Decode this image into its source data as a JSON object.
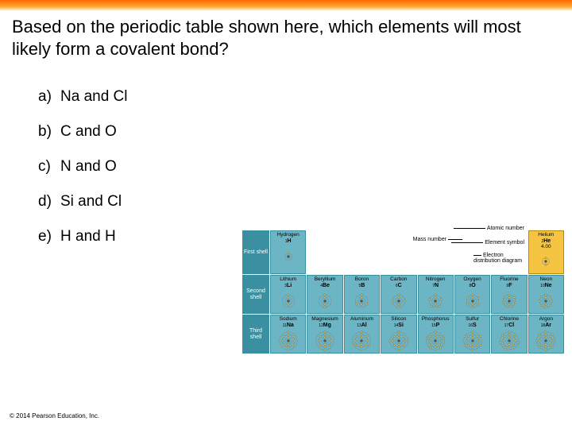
{
  "question": "Based on the periodic table shown here, which elements will most likely form a covalent bond?",
  "options": [
    {
      "letter": "a)",
      "text": "Na and Cl"
    },
    {
      "letter": "b)",
      "text": "C and O"
    },
    {
      "letter": "c)",
      "text": "N and O"
    },
    {
      "letter": "d)",
      "text": "Si and Cl"
    },
    {
      "letter": "e)",
      "text": "H and H"
    }
  ],
  "copyright": "© 2014 Pearson Education, Inc.",
  "rowLabels": [
    "First shell",
    "Second shell",
    "Third shell"
  ],
  "annotations": {
    "atomicNumber": "Atomic number",
    "massNumber": "Mass number",
    "elementSymbol": "Element symbol",
    "electronDist": "Electron distribution diagram"
  },
  "elements": {
    "H": {
      "name": "Hydrogen",
      "num": 1,
      "sym": "H",
      "mass": "",
      "shells": [
        1
      ]
    },
    "He": {
      "name": "Helium",
      "num": 2,
      "sym": "He",
      "mass": "4.00",
      "shells": [
        2
      ],
      "selected": true
    },
    "Li": {
      "name": "Lithium",
      "num": 3,
      "sym": "Li",
      "shells": [
        2,
        1
      ]
    },
    "Be": {
      "name": "Beryllium",
      "num": 4,
      "sym": "Be",
      "shells": [
        2,
        2
      ]
    },
    "B": {
      "name": "Boron",
      "num": 5,
      "sym": "B",
      "shells": [
        2,
        3
      ]
    },
    "C": {
      "name": "Carbon",
      "num": 6,
      "sym": "C",
      "shells": [
        2,
        4
      ]
    },
    "N": {
      "name": "Nitrogen",
      "num": 7,
      "sym": "N",
      "shells": [
        2,
        5
      ]
    },
    "O": {
      "name": "Oxygen",
      "num": 8,
      "sym": "O",
      "shells": [
        2,
        6
      ]
    },
    "F": {
      "name": "Fluorine",
      "num": 9,
      "sym": "F",
      "shells": [
        2,
        7
      ]
    },
    "Ne": {
      "name": "Neon",
      "num": 10,
      "sym": "Ne",
      "shells": [
        2,
        8
      ]
    },
    "Na": {
      "name": "Sodium",
      "num": 11,
      "sym": "Na",
      "shells": [
        2,
        8,
        1
      ]
    },
    "Mg": {
      "name": "Magnesium",
      "num": 12,
      "sym": "Mg",
      "shells": [
        2,
        8,
        2
      ]
    },
    "Al": {
      "name": "Aluminum",
      "num": 13,
      "sym": "Al",
      "shells": [
        2,
        8,
        3
      ]
    },
    "Si": {
      "name": "Silicon",
      "num": 14,
      "sym": "Si",
      "shells": [
        2,
        8,
        4
      ]
    },
    "P": {
      "name": "Phosphorus",
      "num": 15,
      "sym": "P",
      "shells": [
        2,
        8,
        5
      ]
    },
    "S": {
      "name": "Sulfur",
      "num": 16,
      "sym": "S",
      "shells": [
        2,
        8,
        6
      ]
    },
    "Cl": {
      "name": "Chlorine",
      "num": 17,
      "sym": "Cl",
      "shells": [
        2,
        8,
        7
      ]
    },
    "Ar": {
      "name": "Argon",
      "num": 18,
      "sym": "Ar",
      "shells": [
        2,
        8,
        8
      ]
    }
  },
  "layout": [
    [
      "H",
      null,
      null,
      null,
      null,
      null,
      null,
      "He"
    ],
    [
      "Li",
      "Be",
      "B",
      "C",
      "N",
      "O",
      "F",
      "Ne"
    ],
    [
      "Na",
      "Mg",
      "Al",
      "Si",
      "P",
      "S",
      "Cl",
      "Ar"
    ]
  ],
  "colors": {
    "topGradStart": "#ff6600",
    "cellBg": "#6bb5c4",
    "cellBorder": "#3a8fa0",
    "selBg": "#f5c542",
    "rowLabelBg": "#3a8fa0",
    "electronDot": "#f5c542"
  }
}
